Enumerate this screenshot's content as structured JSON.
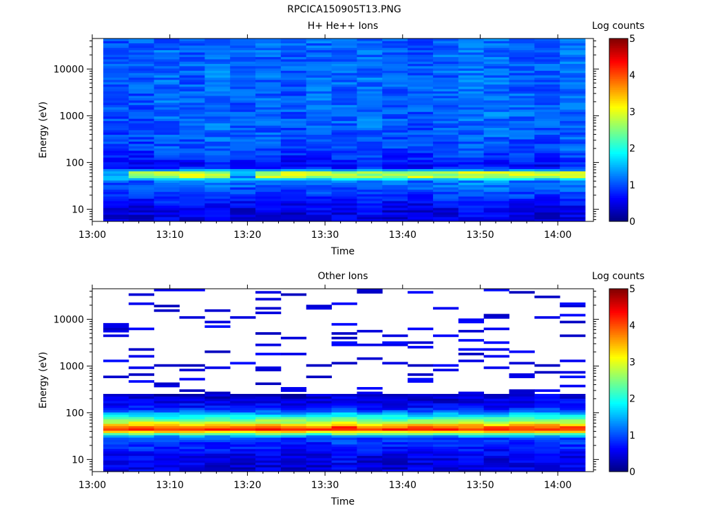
{
  "figure_title": "RPCICA150905T13.PNG",
  "chart_data": [
    {
      "type": "heatmap",
      "title": "H+ He++ Ions",
      "xlabel": "Time",
      "ylabel": "Energy (eV)",
      "xticks": [
        "13:00",
        "13:10",
        "13:20",
        "13:30",
        "13:40",
        "13:50",
        "14:00"
      ],
      "yticks": [
        "10",
        "100",
        "1000",
        "10000"
      ],
      "ylog": true,
      "colorbar_label": "Log counts",
      "colorbar_ticks": [
        "0",
        "1",
        "2",
        "3",
        "4",
        "5"
      ],
      "time_bins": [
        "13:02",
        "13:05",
        "13:08",
        "13:12",
        "13:15",
        "13:18",
        "13:21",
        "13:25",
        "13:28",
        "13:31",
        "13:34",
        "13:38",
        "13:41",
        "13:44",
        "13:47",
        "13:51",
        "13:54",
        "13:57",
        "14:00"
      ],
      "profile": [
        {
          "energy_eV": 10,
          "log_counts": 0.5
        },
        {
          "energy_eV": 20,
          "log_counts": 0.9
        },
        {
          "energy_eV": 40,
          "log_counts": 1.2
        },
        {
          "energy_eV": 53,
          "log_counts": 2.6
        },
        {
          "energy_eV": 80,
          "log_counts": 0.6
        },
        {
          "energy_eV": 200,
          "log_counts": 1.0
        },
        {
          "energy_eV": 1000,
          "log_counts": 1.1
        },
        {
          "energy_eV": 40000,
          "log_counts": 1.1
        }
      ]
    },
    {
      "type": "heatmap",
      "title": "Other Ions",
      "xlabel": "Time",
      "ylabel": "Energy (eV)",
      "xticks": [
        "13:00",
        "13:10",
        "13:20",
        "13:30",
        "13:40",
        "13:50",
        "14:00"
      ],
      "yticks": [
        "10",
        "100",
        "1000",
        "10000"
      ],
      "ylog": true,
      "colorbar_label": "Log counts",
      "colorbar_ticks": [
        "0",
        "1",
        "2",
        "3",
        "4",
        "5"
      ],
      "time_bins": [
        "13:02",
        "13:05",
        "13:08",
        "13:12",
        "13:15",
        "13:18",
        "13:21",
        "13:25",
        "13:28",
        "13:31",
        "13:34",
        "13:38",
        "13:41",
        "13:44",
        "13:47",
        "13:51",
        "13:54",
        "13:57",
        "14:00"
      ],
      "profile": [
        {
          "energy_eV": 10,
          "log_counts": 0.5
        },
        {
          "energy_eV": 30,
          "log_counts": 1.0
        },
        {
          "energy_eV": 45,
          "log_counts": 4.4
        },
        {
          "energy_eV": 60,
          "log_counts": 3.0
        },
        {
          "energy_eV": 120,
          "log_counts": 0.8
        },
        {
          "energy_eV": 220,
          "log_counts": 0.4
        },
        {
          "energy_eV": 40000,
          "log_counts": 0.1
        }
      ]
    }
  ]
}
